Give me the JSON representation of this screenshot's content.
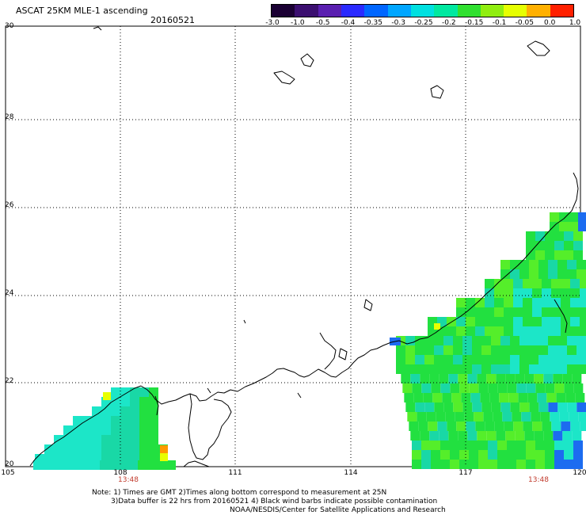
{
  "header": {
    "title": "ASCAT 25KM MLE-1 ascending",
    "date": "20160521"
  },
  "colorbar": {
    "labels": [
      "-3.0",
      "-1.0",
      "-0.5",
      "-0.4",
      "-0.35",
      "-0.3",
      "-0.25",
      "-0.2",
      "-0.15",
      "-0.1",
      "-0.05",
      "0.0",
      "1.0"
    ],
    "colors": [
      "#1a0033",
      "#3b0f70",
      "#5a1fb0",
      "#2a2aff",
      "#0066ff",
      "#00a6ff",
      "#00e0e0",
      "#00e8a0",
      "#30e030",
      "#90ee10",
      "#e6ff00",
      "#ffb000",
      "#ff2000"
    ]
  },
  "map": {
    "lat_labels": [
      "30",
      "28",
      "26",
      "24",
      "22",
      "20"
    ],
    "lon_labels": [
      "105",
      "108",
      "111",
      "114",
      "117",
      "120"
    ],
    "time_labels": [
      "13:48",
      "13:48"
    ],
    "colors": {
      "land_line": "#000000",
      "grid": "#000000",
      "green": "#22e040",
      "lime": "#55ee2a",
      "cyan": "#1ce6c8",
      "teal": "#19d8a6",
      "blue": "#1c6cf0",
      "yellow": "#e8ff00",
      "orange": "#ff9900"
    }
  },
  "notes": {
    "line1": "Note: 1) Times are GMT 2)Times along bottom correspond to measurement at 25N",
    "line2": "3)Data buffer is 22 hrs from 20160521 4) Black wind barbs indicate possible contamination",
    "line3": "NOAA/NESDIS/Center for Satellite Applications and Research"
  }
}
